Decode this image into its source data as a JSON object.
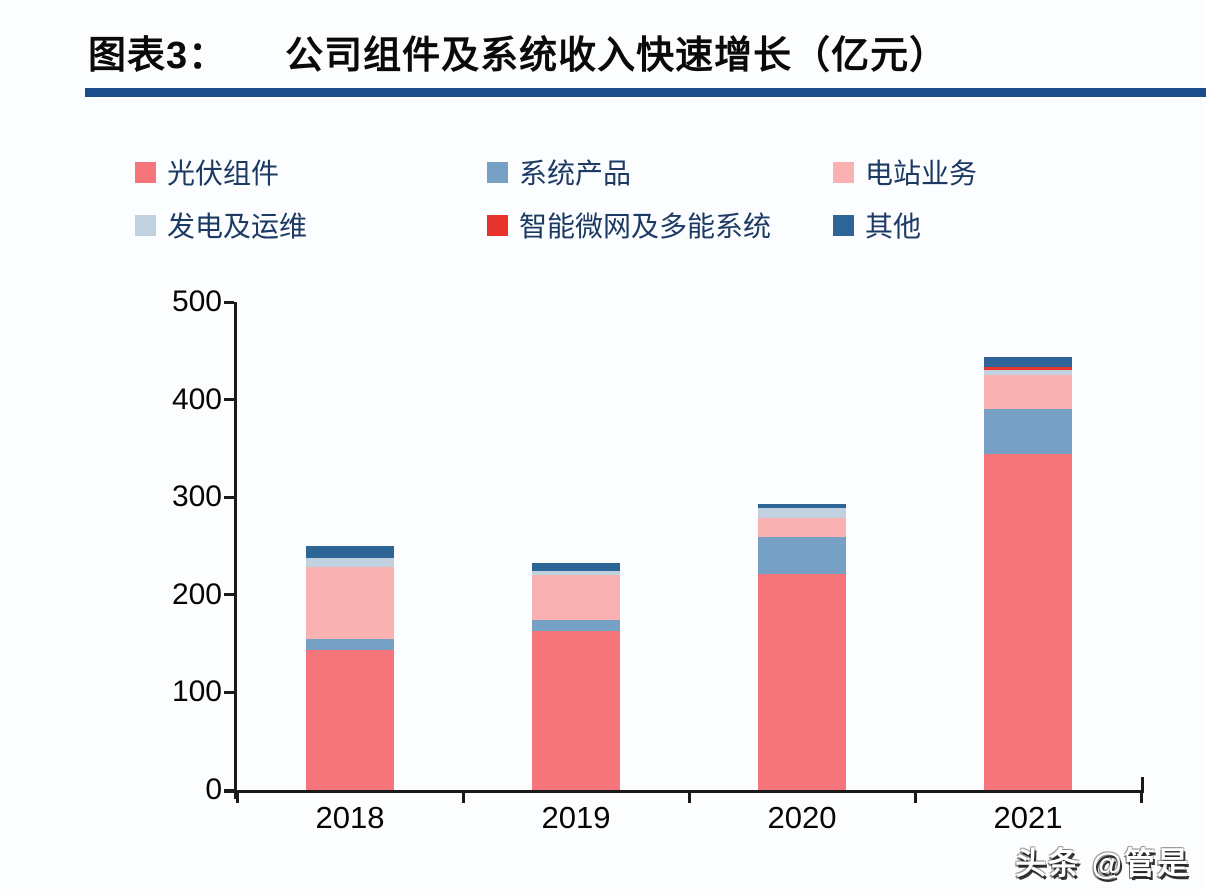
{
  "header": {
    "figure_label": "图表3：",
    "title": "公司组件及系统收入快速增长（亿元）",
    "rule_color": "#1c4c8c"
  },
  "chart_data": {
    "type": "bar",
    "stacked": true,
    "title": "公司组件及系统收入快速增长（亿元）",
    "xlabel": "",
    "ylabel": "",
    "categories": [
      "2018",
      "2019",
      "2020",
      "2021"
    ],
    "series": [
      {
        "name": "光伏组件",
        "color": "#f5767a",
        "values": [
          143,
          163,
          221,
          344
        ]
      },
      {
        "name": "系统产品",
        "color": "#76a1c5",
        "values": [
          12,
          11,
          38,
          46
        ]
      },
      {
        "name": "电站业务",
        "color": "#f9b1b1",
        "values": [
          74,
          46,
          20,
          35
        ]
      },
      {
        "name": "发电及运维",
        "color": "#c1d1e0",
        "values": [
          9,
          4,
          10,
          5
        ]
      },
      {
        "name": "智能微网及多能系统",
        "color": "#e6342c",
        "values": [
          0,
          0,
          0,
          3
        ]
      },
      {
        "name": "其他",
        "color": "#2d6597",
        "values": [
          12,
          9,
          4,
          11
        ]
      }
    ],
    "totals": [
      250,
      233,
      293,
      444
    ],
    "ylim": [
      0,
      500
    ],
    "y_ticks": [
      0,
      100,
      200,
      300,
      400,
      500
    ],
    "grid": false,
    "legend_position": "top-left",
    "axis_color": "#1a1a1a"
  },
  "watermark": {
    "text": "头条 @管是"
  }
}
